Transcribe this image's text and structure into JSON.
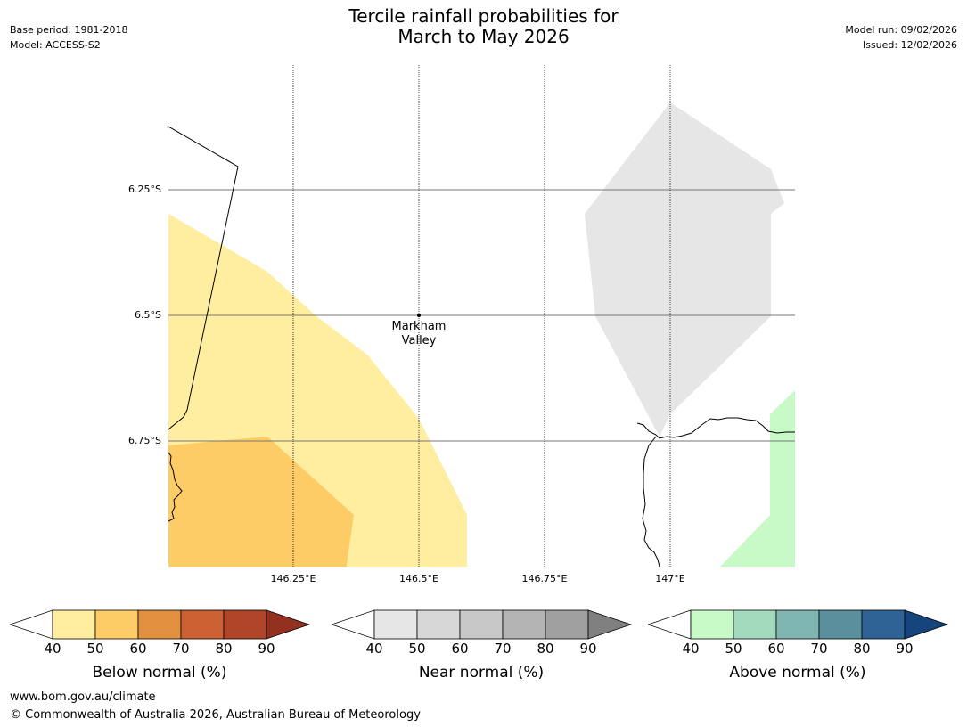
{
  "header": {
    "title_line1": "Tercile rainfall probabilities for",
    "title_line2": "March to May 2026",
    "base_period": "Base period: 1981-2018",
    "model": "Model: ACCESS-S2",
    "model_run": "Model run: 09/02/2026",
    "issued": "Issued: 12/02/2026"
  },
  "map": {
    "lat_labels": [
      "6.25°S",
      "6.5°S",
      "6.75°S"
    ],
    "lon_labels": [
      "146.25°E",
      "146.5°E",
      "146.75°E",
      "147°E"
    ],
    "place": {
      "line1": "Markham",
      "line2": "Valley"
    }
  },
  "legends": [
    {
      "label": "Below normal (%)",
      "ticks": [
        "40",
        "50",
        "60",
        "70",
        "80",
        "90"
      ],
      "colors": [
        "#ffeda0",
        "#fecc66",
        "#e0903f",
        "#cc6133",
        "#b04528",
        "#943020"
      ]
    },
    {
      "label": "Near normal (%)",
      "ticks": [
        "40",
        "50",
        "60",
        "70",
        "80",
        "90"
      ],
      "colors": [
        "#e6e6e6",
        "#d7d7d7",
        "#c8c8c8",
        "#b4b4b4",
        "#a0a0a0",
        "#808080"
      ]
    },
    {
      "label": "Above normal (%)",
      "ticks": [
        "40",
        "50",
        "60",
        "70",
        "80",
        "90"
      ],
      "colors": [
        "#c8fac8",
        "#a3d9bd",
        "#7fb6b1",
        "#5a8f9e",
        "#2f6396",
        "#14457d"
      ]
    }
  ],
  "footer": {
    "url": "www.bom.gov.au/climate",
    "copyright": "© Commonwealth of Australia 2026, Australian Bureau of Meteorology"
  }
}
